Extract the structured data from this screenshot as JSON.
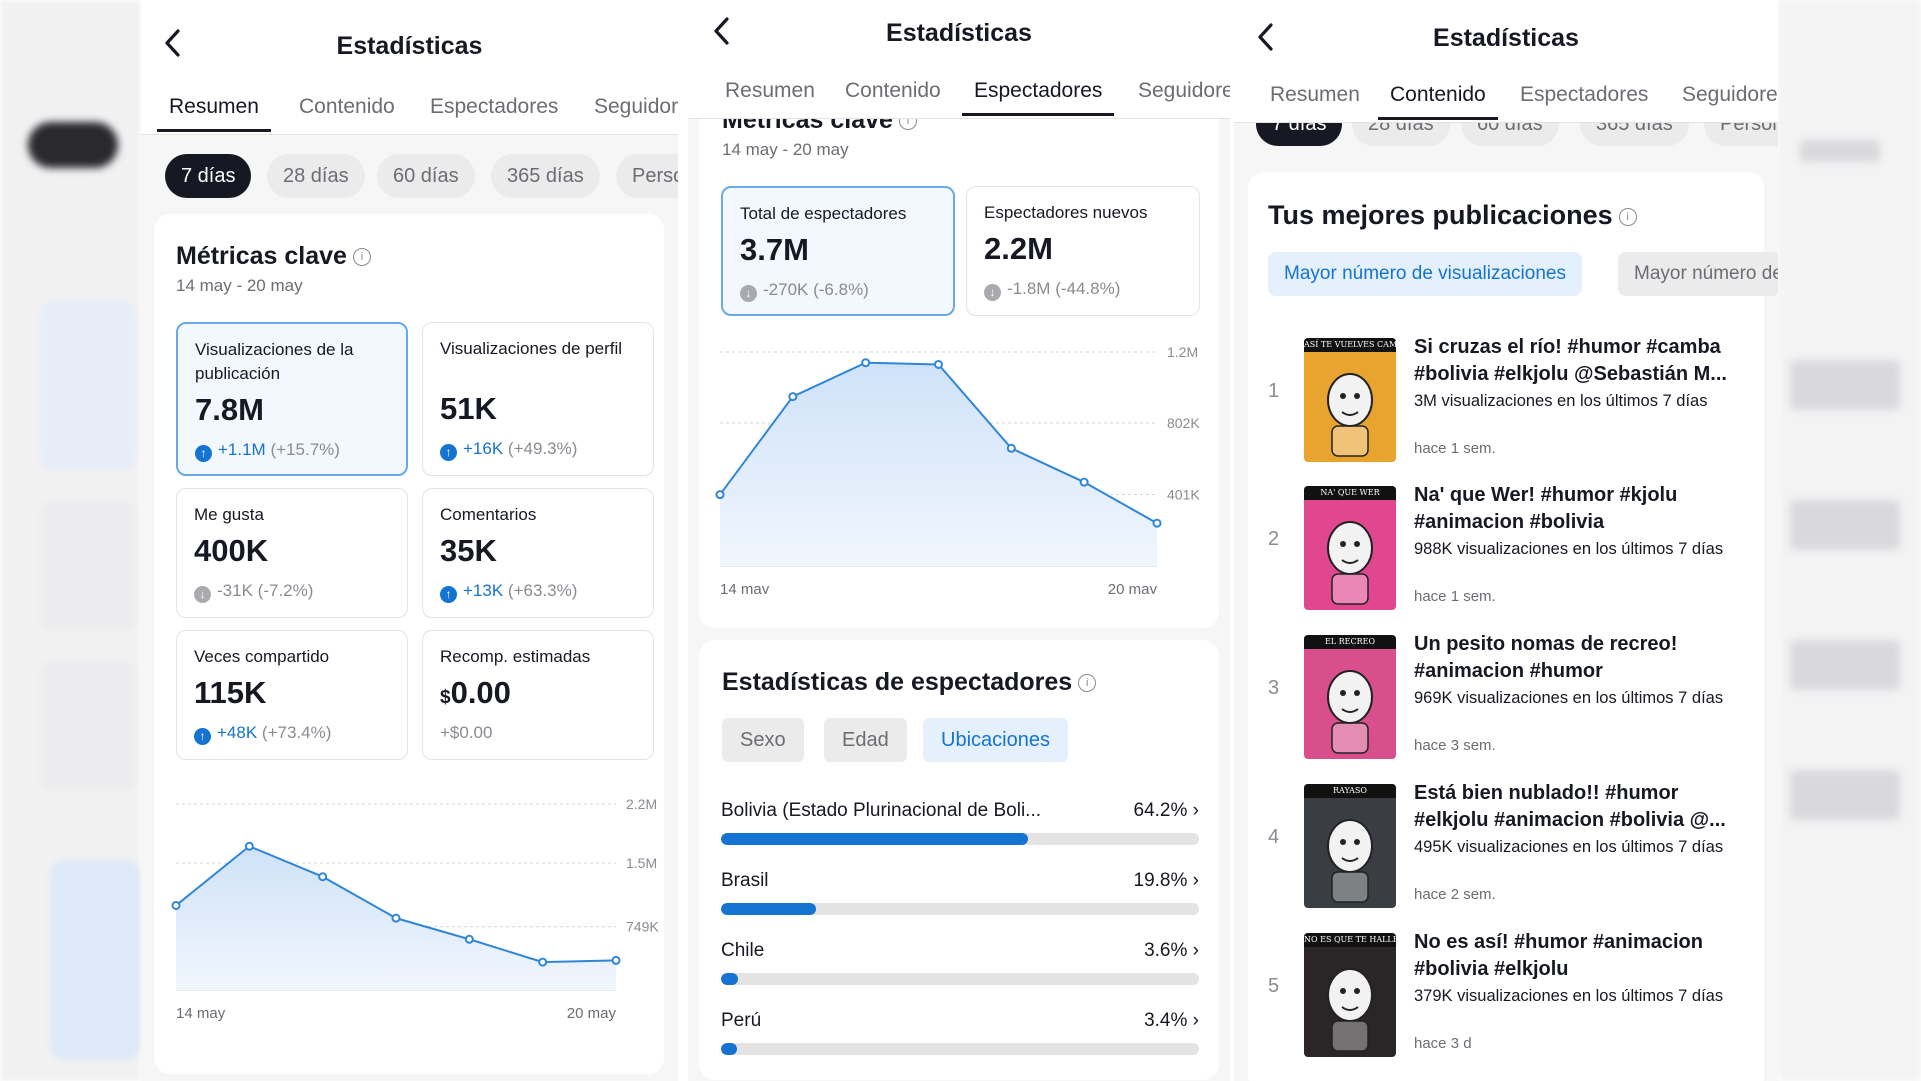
{
  "colors": {
    "accent": "#1573d1",
    "text": "#161823",
    "muted": "#6c6d73",
    "chart_fill": "#dbe9fa"
  },
  "panel1": {
    "title": "Estadísticas",
    "back_icon": "chevron-left-icon",
    "tabs": [
      "Resumen",
      "Contenido",
      "Espectadores",
      "Seguidores"
    ],
    "active_tab": "Resumen",
    "ranges": [
      "7 días",
      "28 días",
      "60 días",
      "365 días",
      "Personalizado"
    ],
    "active_range": "7 días",
    "section_title": "Métricas clave",
    "date_range": "14 may - 20 may",
    "metrics": [
      {
        "label": "Visualizaciones de la publicación",
        "value": "7.8M",
        "delta": "+1.1M",
        "pct": "(+15.7%)",
        "direction": "up"
      },
      {
        "label": "Visualizaciones de perfil",
        "value": "51K",
        "delta": "+16K",
        "pct": "(+49.3%)",
        "direction": "up"
      },
      {
        "label": "Me gusta",
        "value": "400K",
        "delta": "-31K",
        "pct": "(-7.2%)",
        "direction": "down"
      },
      {
        "label": "Comentarios",
        "value": "35K",
        "delta": "+13K",
        "pct": "(+63.3%)",
        "direction": "up"
      },
      {
        "label": "Veces compartido",
        "value": "115K",
        "delta": "+48K",
        "pct": "(+73.4%)",
        "direction": "up"
      },
      {
        "label": "Recomp. estimadas",
        "value_prefix": "$",
        "value": "0.00",
        "delta": "+$0.00"
      }
    ]
  },
  "panel2": {
    "title": "Estadísticas",
    "tabs": [
      "Resumen",
      "Contenido",
      "Espectadores",
      "Seguidores"
    ],
    "active_tab": "Espectadores",
    "section_title": "Métricas clave",
    "date_range": "14 may - 20 may",
    "metrics": [
      {
        "label": "Total de espectadores",
        "value": "3.7M",
        "delta": "-270K",
        "pct": "(-6.8%)",
        "direction": "down"
      },
      {
        "label": "Espectadores nuevos",
        "value": "2.2M",
        "delta": "-1.8M",
        "pct": "(-44.8%)",
        "direction": "down"
      }
    ],
    "viewer_section_title": "Estadísticas de espectadores",
    "segments": [
      "Sexo",
      "Edad",
      "Ubicaciones"
    ],
    "active_segment": "Ubicaciones",
    "locations": [
      {
        "name": "Bolivia (Estado Plurinacional de Boli...",
        "pct_label": "64.2%",
        "share": 64.2
      },
      {
        "name": "Brasil",
        "pct_label": "19.8%",
        "share": 19.8
      },
      {
        "name": "Chile",
        "pct_label": "3.6%",
        "share": 3.6
      },
      {
        "name": "Perú",
        "pct_label": "3.4%",
        "share": 3.4
      }
    ]
  },
  "panel3": {
    "title": "Estadísticas",
    "tabs": [
      "Resumen",
      "Contenido",
      "Espectadores",
      "Seguidores"
    ],
    "active_tab": "Contenido",
    "ranges": [
      "7 días",
      "28 días",
      "60 días",
      "365 días",
      "Personalizado"
    ],
    "active_range": "7 días",
    "section_title": "Tus mejores publicaciones",
    "filters": [
      "Mayor número de visualizaciones",
      "Mayor número de me gusta"
    ],
    "active_filter": "Mayor número de visualizaciones",
    "posts": [
      {
        "rank": "1",
        "thumb_caption": "ASÍ TE VUELVES CAMBA",
        "thumb_color": "#e9a430",
        "title": "Si cruzas el río! #humor #camba #bolivia #elkjolu @Sebastián M...",
        "views": "3M visualizaciones en los últimos 7 días",
        "ago": "hace 1 sem."
      },
      {
        "rank": "2",
        "thumb_caption": "NA' QUE WER",
        "thumb_color": "#e0478f",
        "title": "Na' que Wer! #humor #kjolu #animacion #bolivia",
        "views": "988K visualizaciones en los últimos 7 días",
        "ago": "hace 1 sem."
      },
      {
        "rank": "3",
        "thumb_caption": "EL RECREO",
        "thumb_color": "#d84f8c",
        "title": "Un pesito nomas de recreo! #animacion #humor",
        "views": "969K visualizaciones en los últimos 7 días",
        "ago": "hace 3 sem."
      },
      {
        "rank": "4",
        "thumb_caption": "RAYASO",
        "thumb_color": "#3a3d42",
        "title": "Está bien nublado!! #humor #elkjolu #animacion #bolivia @...",
        "views": "495K visualizaciones en los últimos 7 días",
        "ago": "hace 2 sem."
      },
      {
        "rank": "5",
        "thumb_caption": "NO ES QUE TE HALLES ASÍ",
        "thumb_color": "#2a2527",
        "title": "No es así! #humor #animacion #bolivia #elkjolu",
        "views": "379K visualizaciones en los últimos 7 días",
        "ago": "hace 3 d"
      }
    ]
  },
  "chart_data": [
    {
      "type": "area",
      "series": [
        {
          "values": [
            1.0,
            1.7,
            1.34,
            0.85,
            0.6,
            0.33,
            0.35
          ]
        }
      ],
      "x_labels": [
        "14 may",
        "20 may"
      ],
      "y_tick_labels": [
        "2.2M",
        "1.5M",
        "749K"
      ],
      "y_ticks": [
        2.2,
        1.5,
        0.749
      ],
      "ylim": [
        0,
        2.2
      ],
      "unit": "M",
      "grid": true
    },
    {
      "type": "area",
      "series": [
        {
          "values": [
            0.4,
            0.95,
            1.14,
            1.13,
            0.66,
            0.47,
            0.24
          ]
        }
      ],
      "x_labels": [
        "14 may",
        "20 may"
      ],
      "y_tick_labels": [
        "1.2M",
        "802K",
        "401K"
      ],
      "y_ticks": [
        1.2,
        0.802,
        0.401
      ],
      "ylim": [
        0,
        1.2
      ],
      "unit": "M",
      "grid": true
    }
  ]
}
